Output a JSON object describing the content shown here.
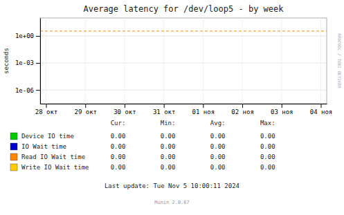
{
  "chart_data": {
    "type": "line",
    "title": "Average latency for /dev/loop5 - by week",
    "y_label": "seconds",
    "log": "y",
    "grid": true,
    "categories": [
      "28 окт",
      "29 окт",
      "30 окт",
      "31 окт",
      "01 ноя",
      "02 ноя",
      "03 ноя",
      "04 ноя"
    ],
    "ylim": [
      3e-08,
      100
    ],
    "yticks": [
      {
        "value": 1e-06,
        "label": "1e-06"
      },
      {
        "value": 0.001,
        "label": "1e-03"
      },
      {
        "value": 1,
        "label": "1e+00"
      }
    ],
    "hlines": [
      {
        "value": 3.5,
        "color": "#ff8800",
        "line_style": "dashed"
      }
    ],
    "stat_labels": [
      "Cur:",
      "Min:",
      "Avg:",
      "Max:"
    ],
    "series": [
      {
        "name": "Device IO time",
        "color": "#00cc00",
        "values": [
          null,
          null,
          null,
          null,
          null,
          null,
          null,
          null
        ],
        "stats": [
          {
            "value": 0,
            "label": "0.00"
          },
          {
            "value": 0,
            "label": "0.00"
          },
          {
            "value": 0,
            "label": "0.00"
          },
          {
            "value": 0,
            "label": "0.00"
          }
        ]
      },
      {
        "name": "IO Wait time",
        "color": "#0000cc",
        "values": [
          null,
          null,
          null,
          null,
          null,
          null,
          null,
          null
        ],
        "stats": [
          {
            "value": 0,
            "label": "0.00"
          },
          {
            "value": 0,
            "label": "0.00"
          },
          {
            "value": 0,
            "label": "0.00"
          },
          {
            "value": 0,
            "label": "0.00"
          }
        ]
      },
      {
        "name": "Read IO Wait time",
        "color": "#ff8800",
        "values": [
          null,
          null,
          null,
          null,
          null,
          null,
          null,
          null
        ],
        "stats": [
          {
            "value": 0,
            "label": "0.00"
          },
          {
            "value": 0,
            "label": "0.00"
          },
          {
            "value": 0,
            "label": "0.00"
          },
          {
            "value": 0,
            "label": "0.00"
          }
        ]
      },
      {
        "name": "Write IO Wait time",
        "color": "#ffcc00",
        "values": [
          null,
          null,
          null,
          null,
          null,
          null,
          null,
          null
        ],
        "stats": [
          {
            "value": 0,
            "label": "0.00"
          },
          {
            "value": 0,
            "label": "0.00"
          },
          {
            "value": 0,
            "label": "0.00"
          },
          {
            "value": 0,
            "label": "0.00"
          }
        ]
      }
    ],
    "annotations": [
      "RRDTOOL / TOBI OETIKER",
      "Last update: Tue Nov  5 10:00:11 2024",
      "Munin 2.0.67"
    ]
  }
}
